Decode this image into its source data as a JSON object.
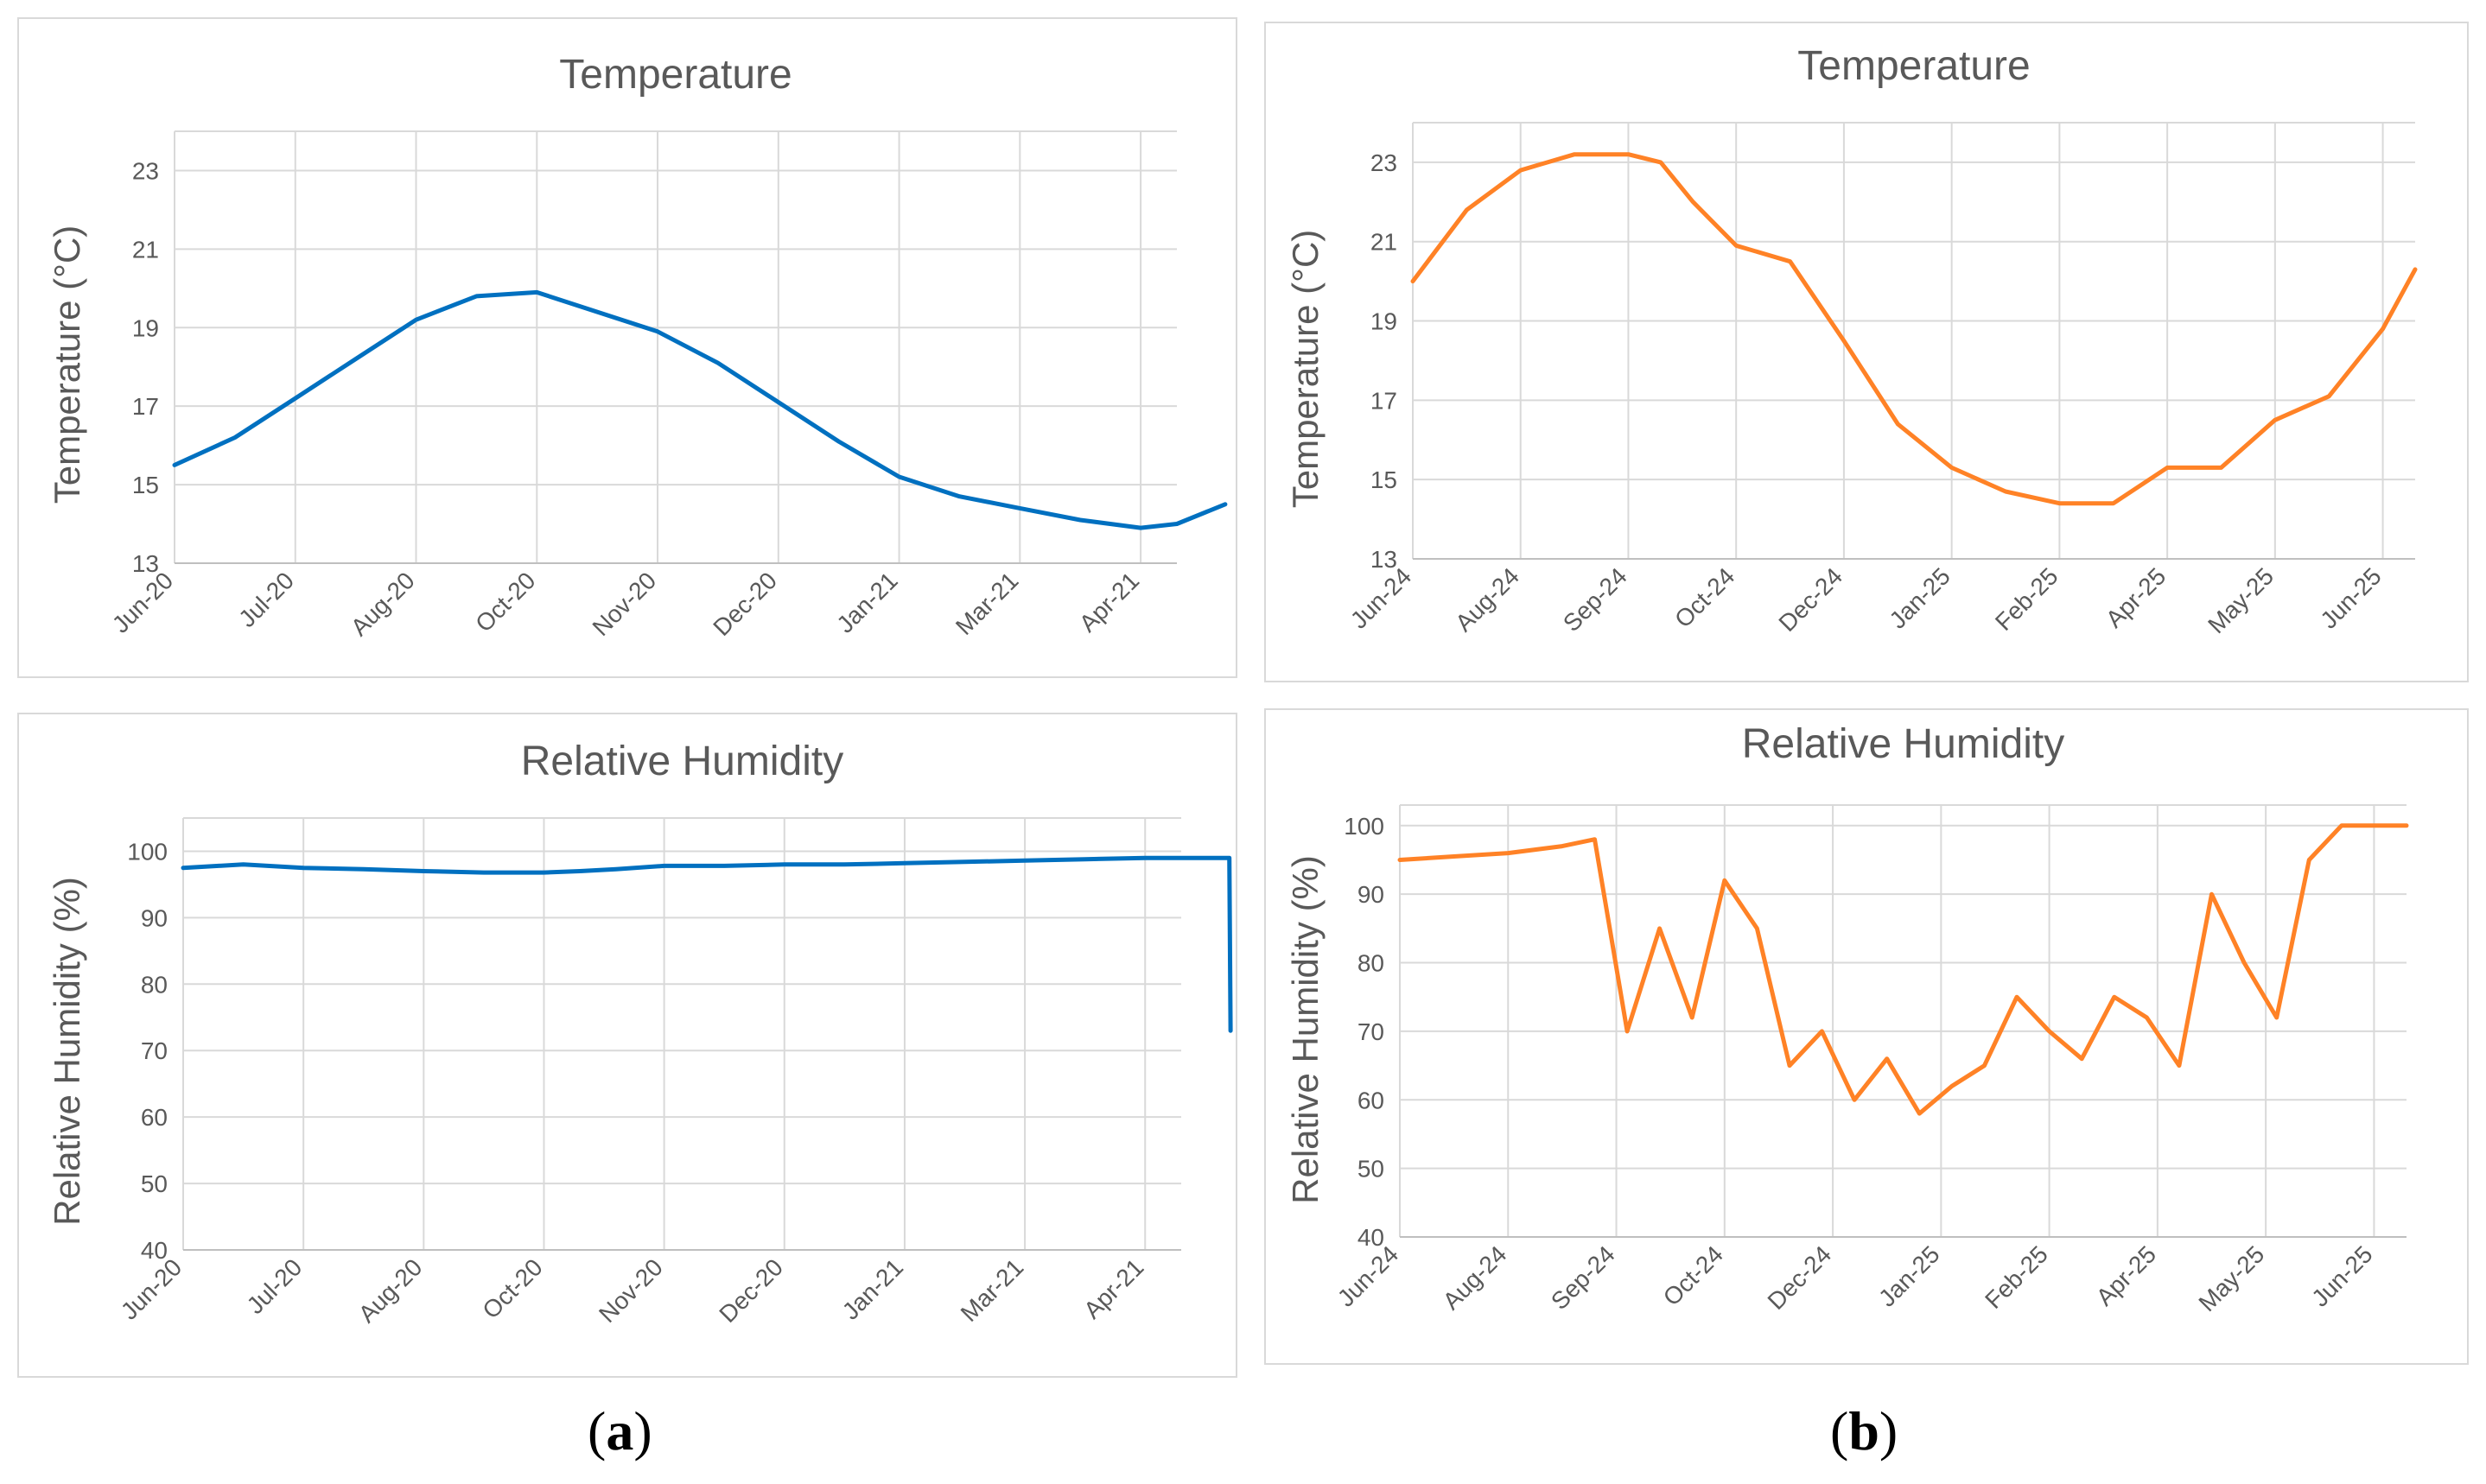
{
  "captions": {
    "a": {
      "open": "(",
      "letter": "a",
      "close": ")"
    },
    "b": {
      "open": "(",
      "letter": "b",
      "close": ")"
    }
  },
  "chart_data": [
    {
      "id": "temp_a",
      "type": "line",
      "title": "Temperature",
      "ylabel": "Temperature (°C)",
      "xlabel": "",
      "color": "#0070C0",
      "ylim": [
        13,
        24
      ],
      "yticks": [
        13,
        15,
        17,
        19,
        21,
        23
      ],
      "categories": [
        "Jun-20",
        "Jul-20",
        "Aug-20",
        "Oct-20",
        "Nov-20",
        "Dec-20",
        "Jan-21",
        "Mar-21",
        "Apr-21"
      ],
      "series": [
        {
          "name": "Temperature",
          "x": [
            0,
            0.5,
            1,
            1.5,
            2,
            2.5,
            3,
            3.5,
            4,
            4.5,
            5,
            5.5,
            6,
            6.5,
            7,
            7.5,
            8,
            8.3,
            8.7
          ],
          "values": [
            15.5,
            16.2,
            17.2,
            18.2,
            19.2,
            19.8,
            19.9,
            19.4,
            18.9,
            18.1,
            17.1,
            16.1,
            15.2,
            14.7,
            14.4,
            14.1,
            13.9,
            14.0,
            14.5
          ]
        }
      ]
    },
    {
      "id": "rh_a",
      "type": "line",
      "title": "Relative Humidity",
      "ylabel": "Relative Humidity (%)",
      "xlabel": "",
      "color": "#0070C0",
      "ylim": [
        40,
        105
      ],
      "yticks": [
        40,
        50,
        60,
        70,
        80,
        90,
        100
      ],
      "categories": [
        "Jun-20",
        "Jul-20",
        "Aug-20",
        "Oct-20",
        "Nov-20",
        "Dec-20",
        "Jan-21",
        "Mar-21",
        "Apr-21"
      ],
      "series": [
        {
          "name": "Relative Humidity",
          "x": [
            0,
            0.5,
            1,
            1.5,
            2,
            2.5,
            3,
            3.3,
            3.6,
            4,
            4.5,
            5,
            5.5,
            6,
            6.5,
            7,
            7.5,
            8,
            8.5,
            8.7,
            8.71
          ],
          "values": [
            97.5,
            98,
            97.5,
            97.3,
            97,
            96.8,
            96.8,
            97,
            97.3,
            97.8,
            97.8,
            98,
            98,
            98.2,
            98.4,
            98.6,
            98.8,
            99,
            99,
            99,
            73
          ]
        }
      ]
    },
    {
      "id": "temp_b",
      "type": "line",
      "title": "Temperature",
      "ylabel": "Temperature (°C)",
      "xlabel": "",
      "color": "#FF8226",
      "ylim": [
        13,
        24
      ],
      "yticks": [
        13,
        15,
        17,
        19,
        21,
        23
      ],
      "categories": [
        "Jun-24",
        "Aug-24",
        "Sep-24",
        "Oct-24",
        "Dec-24",
        "Jan-25",
        "Feb-25",
        "Apr-25",
        "May-25",
        "Jun-25"
      ],
      "series": [
        {
          "name": "Temperature",
          "x": [
            0,
            0.5,
            1,
            1.5,
            2,
            2.3,
            2.6,
            3,
            3.5,
            4,
            4.5,
            5,
            5.5,
            6,
            6.5,
            7,
            7.5,
            8,
            8.5,
            9,
            9.3
          ],
          "values": [
            20,
            21.8,
            22.8,
            23.2,
            23.2,
            23.0,
            22.0,
            20.9,
            20.5,
            18.5,
            16.4,
            15.3,
            14.7,
            14.4,
            14.4,
            15.3,
            15.3,
            16.5,
            17.1,
            18.8,
            20.3
          ]
        }
      ]
    },
    {
      "id": "rh_b",
      "type": "line",
      "title": "Relative Humidity",
      "ylabel": "Relative Humidity (%)",
      "xlabel": "",
      "color": "#FF8226",
      "ylim": [
        40,
        103
      ],
      "yticks": [
        40,
        50,
        60,
        70,
        80,
        90,
        100
      ],
      "categories": [
        "Jun-24",
        "Aug-24",
        "Sep-24",
        "Oct-24",
        "Dec-24",
        "Jan-25",
        "Feb-25",
        "Apr-25",
        "May-25",
        "Jun-25"
      ],
      "series": [
        {
          "name": "Relative Humidity",
          "x": [
            0,
            0.5,
            1,
            1.5,
            1.8,
            2.1,
            2.4,
            2.7,
            3,
            3.3,
            3.6,
            3.9,
            4.2,
            4.5,
            4.8,
            5.1,
            5.4,
            5.7,
            6,
            6.3,
            6.6,
            6.9,
            7.2,
            7.5,
            7.8,
            8.1,
            8.4,
            8.7,
            9,
            9.3
          ],
          "values": [
            95,
            95.5,
            96,
            97,
            98,
            70,
            85,
            72,
            92,
            85,
            65,
            70,
            60,
            66,
            58,
            62,
            65,
            75,
            70,
            66,
            75,
            72,
            65,
            90,
            80,
            72,
            95,
            100,
            100,
            100
          ]
        }
      ]
    }
  ]
}
